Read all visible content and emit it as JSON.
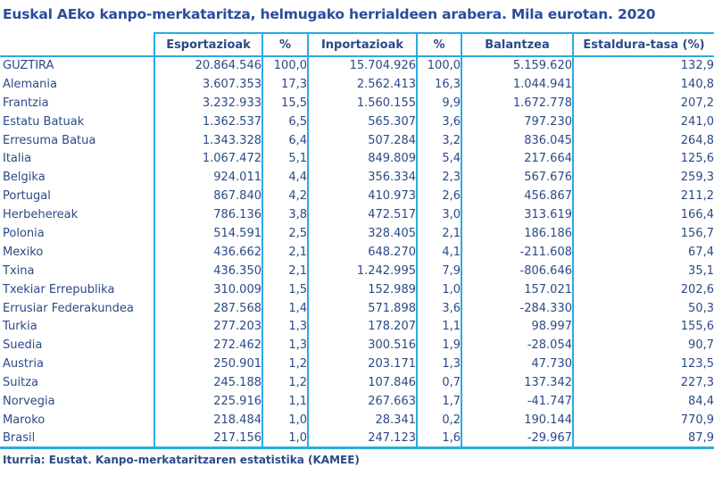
{
  "chart_data": {
    "type": "table",
    "title": "Euskal AEko kanpo-merkataritza, helmugako herrialdeen arabera. Mila eurotan. 2020",
    "headers": [
      "",
      "Esportazioak",
      "%",
      "Inportazioak",
      "%",
      "Balantzea",
      "Estaldura-tasa (%)"
    ],
    "rows": [
      {
        "name": "GUZTIRA",
        "values": [
          "20.864.546",
          "100,0",
          "15.704.926",
          "100,0",
          "5.159.620",
          "132,9"
        ]
      },
      {
        "name": "Alemania",
        "values": [
          "3.607.353",
          "17,3",
          "2.562.413",
          "16,3",
          "1.044.941",
          "140,8"
        ]
      },
      {
        "name": "Frantzia",
        "values": [
          "3.232.933",
          "15,5",
          "1.560.155",
          "9,9",
          "1.672.778",
          "207,2"
        ]
      },
      {
        "name": "Estatu Batuak",
        "values": [
          "1.362.537",
          "6,5",
          "565.307",
          "3,6",
          "797.230",
          "241,0"
        ]
      },
      {
        "name": "Erresuma Batua",
        "values": [
          "1.343.328",
          "6,4",
          "507.284",
          "3,2",
          "836.045",
          "264,8"
        ]
      },
      {
        "name": "Italia",
        "values": [
          "1.067.472",
          "5,1",
          "849.809",
          "5,4",
          "217.664",
          "125,6"
        ]
      },
      {
        "name": "Belgika",
        "values": [
          "924.011",
          "4,4",
          "356.334",
          "2,3",
          "567.676",
          "259,3"
        ]
      },
      {
        "name": "Portugal",
        "values": [
          "867.840",
          "4,2",
          "410.973",
          "2,6",
          "456.867",
          "211,2"
        ]
      },
      {
        "name": "Herbehereak",
        "values": [
          "786.136",
          "3,8",
          "472.517",
          "3,0",
          "313.619",
          "166,4"
        ]
      },
      {
        "name": "Polonia",
        "values": [
          "514.591",
          "2,5",
          "328.405",
          "2,1",
          "186.186",
          "156,7"
        ]
      },
      {
        "name": "Mexiko",
        "values": [
          "436.662",
          "2,1",
          "648.270",
          "4,1",
          "-211.608",
          "67,4"
        ]
      },
      {
        "name": "Txina",
        "values": [
          "436.350",
          "2,1",
          "1.242.995",
          "7,9",
          "-806.646",
          "35,1"
        ]
      },
      {
        "name": "Txekiar Errepublika",
        "values": [
          "310.009",
          "1,5",
          "152.989",
          "1,0",
          "157.021",
          "202,6"
        ]
      },
      {
        "name": "Errusiar Federakundea",
        "values": [
          "287.568",
          "1,4",
          "571.898",
          "3,6",
          "-284.330",
          "50,3"
        ]
      },
      {
        "name": "Turkia",
        "values": [
          "277.203",
          "1,3",
          "178.207",
          "1,1",
          "98.997",
          "155,6"
        ]
      },
      {
        "name": "Suedia",
        "values": [
          "272.462",
          "1,3",
          "300.516",
          "1,9",
          "-28.054",
          "90,7"
        ]
      },
      {
        "name": "Austria",
        "values": [
          "250.901",
          "1,2",
          "203.171",
          "1,3",
          "47.730",
          "123,5"
        ]
      },
      {
        "name": "Suitza",
        "values": [
          "245.188",
          "1,2",
          "107.846",
          "0,7",
          "137.342",
          "227,3"
        ]
      },
      {
        "name": "Norvegia",
        "values": [
          "225.916",
          "1,1",
          "267.663",
          "1,7",
          "-41.747",
          "84,4"
        ]
      },
      {
        "name": "Maroko",
        "values": [
          "218.484",
          "1,0",
          "28.341",
          "0,2",
          "190.144",
          "770,9"
        ]
      },
      {
        "name": "Brasil",
        "values": [
          "217.156",
          "1,0",
          "247.123",
          "1,6",
          "-29.967",
          "87,9"
        ]
      }
    ],
    "source": "Iturria: Eustat. Kanpo-merkataritzaren estatistika (KAMEE)",
    "layout": {
      "grid": "cyan column separators, no horizontal lines between data rows",
      "first_column_header": "empty",
      "number_alignment": "right"
    }
  },
  "colors": {
    "border": "#29ABE2",
    "text": "#2B4A86",
    "title_text": "#2B4C9E",
    "background": "#FFFFFF"
  }
}
